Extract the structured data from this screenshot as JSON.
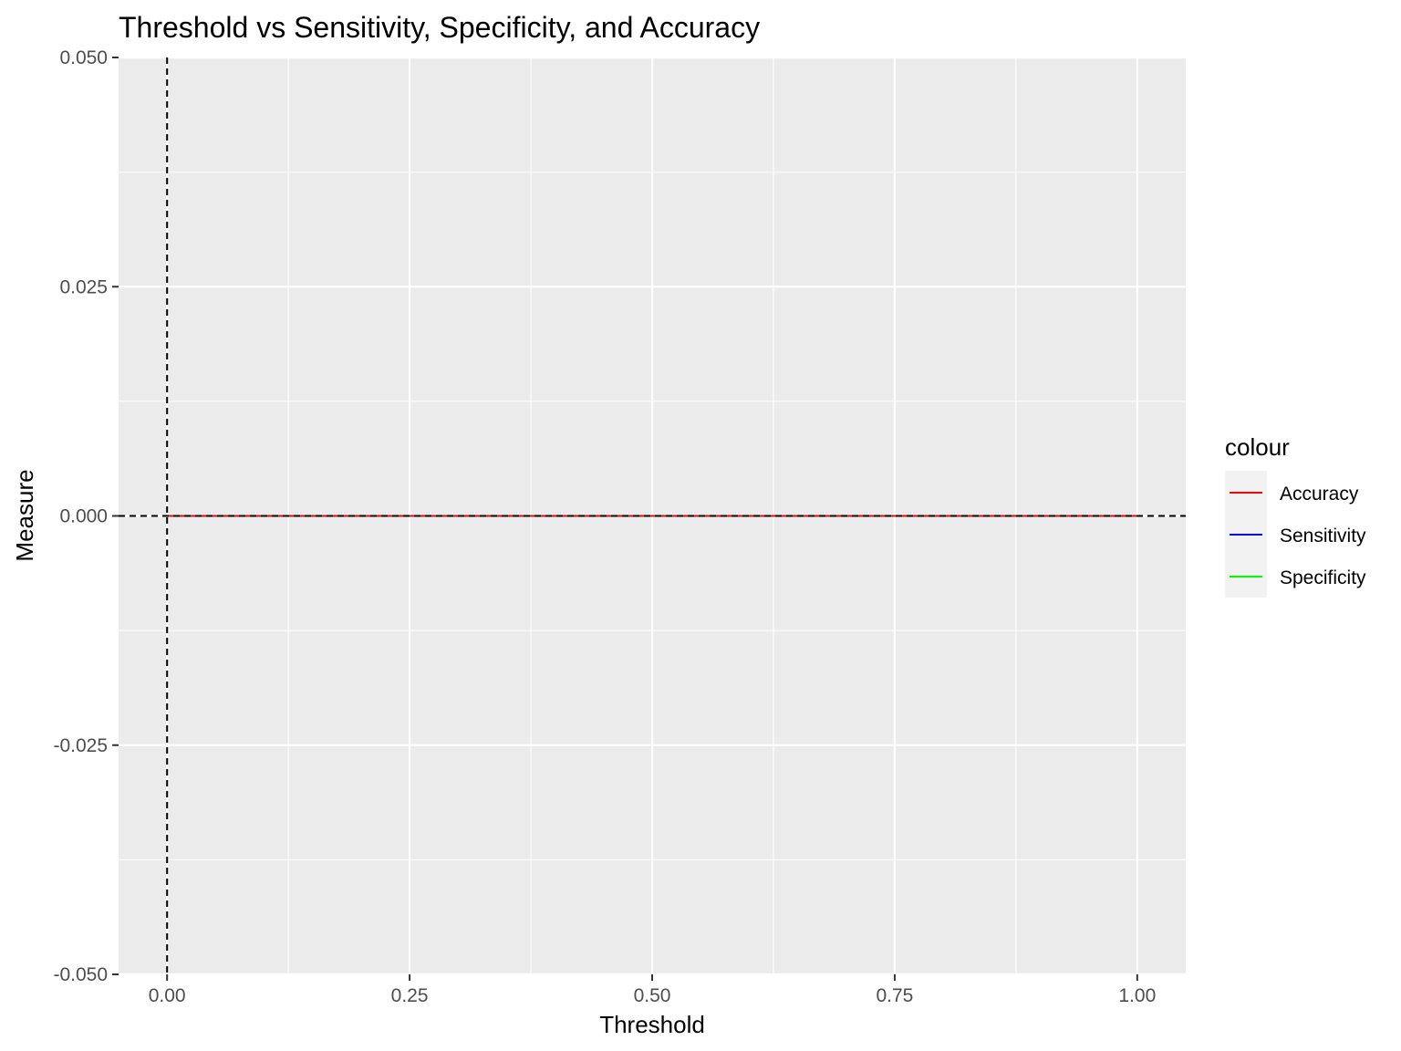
{
  "chart_data": {
    "type": "line",
    "title": "Threshold vs Sensitivity, Specificity, and Accuracy",
    "xlabel": "Threshold",
    "ylabel": "Measure",
    "xlim": [
      -0.05,
      1.05
    ],
    "ylim": [
      -0.05,
      0.05
    ],
    "x_ticks": [
      0.0,
      0.25,
      0.5,
      0.75,
      1.0
    ],
    "x_tick_labels": [
      "0.00",
      "0.25",
      "0.50",
      "0.75",
      "1.00"
    ],
    "y_ticks": [
      -0.05,
      -0.025,
      0.0,
      0.025,
      0.05
    ],
    "y_tick_labels": [
      "-0.050",
      "-0.025",
      "0.000",
      "0.025",
      "0.050"
    ],
    "grid": true,
    "panel_background": "#ebebeb",
    "legend": {
      "title": "colour",
      "placement": "right",
      "entries": [
        "Accuracy",
        "Sensitivity",
        "Specificity"
      ]
    },
    "series": [
      {
        "name": "Specificity",
        "color": "#00ff00",
        "x": [
          0.0,
          1.0
        ],
        "y": [
          0.0,
          0.0
        ]
      },
      {
        "name": "Sensitivity",
        "color": "#0000ff",
        "x": [
          0.0,
          1.0
        ],
        "y": [
          0.0,
          0.0
        ]
      },
      {
        "name": "Accuracy",
        "color": "#ff0000",
        "x": [
          0.0,
          1.0
        ],
        "y": [
          0.0,
          0.0
        ]
      }
    ],
    "reference_lines": [
      {
        "orientation": "vertical",
        "value": 0.0,
        "style": "dashed",
        "color": "#000000"
      },
      {
        "orientation": "horizontal",
        "value": 0.0,
        "style": "dashed",
        "color": "#000000"
      }
    ]
  }
}
